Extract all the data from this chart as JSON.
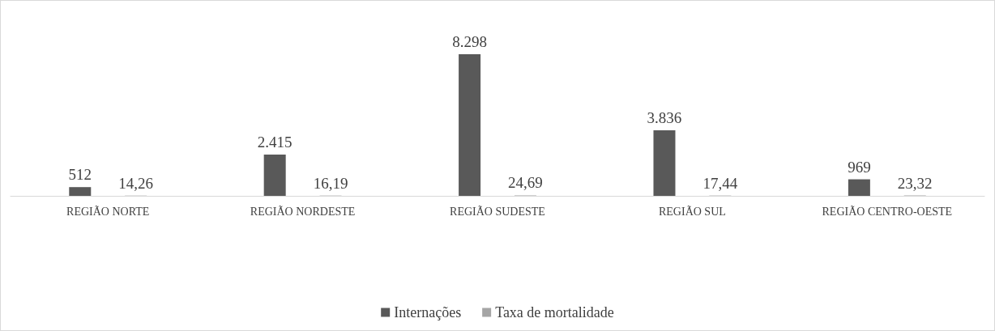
{
  "chart_data": {
    "type": "bar",
    "categories": [
      "REGIÃO NORTE",
      "REGIÃO NORDESTE",
      "REGIÃO SUDESTE",
      "REGIÃO SUL",
      "REGIÃO CENTRO-OESTE"
    ],
    "series": [
      {
        "name": "Internações",
        "color": "#595959",
        "values": [
          512,
          2415,
          8298,
          3836,
          969
        ],
        "value_labels": [
          "512",
          "2.415",
          "8.298",
          "3.836",
          "969"
        ]
      },
      {
        "name": "Taxa de mortalidade",
        "color": "#a5a5a5",
        "values": [
          14.26,
          16.19,
          24.69,
          17.44,
          23.32
        ],
        "value_labels": [
          "14,26",
          "16,19",
          "24,69",
          "17,44",
          "23,32"
        ]
      }
    ],
    "grid": false,
    "legend": "bottom"
  }
}
